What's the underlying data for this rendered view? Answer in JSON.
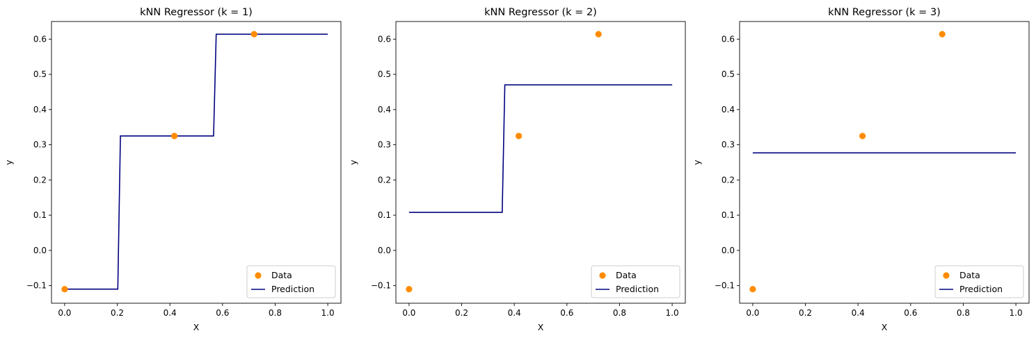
{
  "colors": {
    "data_points": "#ff8c00",
    "prediction_line": "#000080",
    "axes": "#000000",
    "legend_border": "#cccccc"
  },
  "chart_data": [
    {
      "type": "line",
      "title": "kNN Regressor (k = 1)",
      "xlabel": "X",
      "ylabel": "y",
      "xlim": [
        -0.05,
        1.05
      ],
      "ylim": [
        -0.15,
        0.65
      ],
      "xticks": [
        0.0,
        0.2,
        0.4,
        0.6,
        0.8,
        1.0
      ],
      "xtick_labels": [
        "0.0",
        "0.2",
        "0.4",
        "0.6",
        "0.8",
        "1.0"
      ],
      "yticks": [
        -0.1,
        0.0,
        0.1,
        0.2,
        0.3,
        0.4,
        0.5,
        0.6
      ],
      "ytick_labels": [
        "−0.1",
        "0.0",
        "0.1",
        "0.2",
        "0.3",
        "0.4",
        "0.5",
        "0.6"
      ],
      "grid": false,
      "legend": {
        "position": "lower-right",
        "entries": [
          "Data",
          "Prediction"
        ]
      },
      "series": [
        {
          "name": "Data",
          "kind": "scatter",
          "color": "#ff8c00",
          "points": [
            [
              0.0,
              -0.11
            ],
            [
              0.417,
              0.325
            ],
            [
              0.72,
              0.614
            ]
          ]
        },
        {
          "name": "Prediction",
          "kind": "line",
          "color": "#000080",
          "points": [
            [
              0.0,
              -0.11
            ],
            [
              0.202,
              -0.11
            ],
            [
              0.212,
              0.325
            ],
            [
              0.566,
              0.325
            ],
            [
              0.576,
              0.614
            ],
            [
              1.0,
              0.614
            ]
          ]
        }
      ]
    },
    {
      "type": "line",
      "title": "kNN Regressor (k = 2)",
      "xlabel": "X",
      "ylabel": "y",
      "xlim": [
        -0.05,
        1.05
      ],
      "ylim": [
        -0.15,
        0.65
      ],
      "xticks": [
        0.0,
        0.2,
        0.4,
        0.6,
        0.8,
        1.0
      ],
      "xtick_labels": [
        "0.0",
        "0.2",
        "0.4",
        "0.6",
        "0.8",
        "1.0"
      ],
      "yticks": [
        -0.1,
        0.0,
        0.1,
        0.2,
        0.3,
        0.4,
        0.5,
        0.6
      ],
      "ytick_labels": [
        "−0.1",
        "0.0",
        "0.1",
        "0.2",
        "0.3",
        "0.4",
        "0.5",
        "0.6"
      ],
      "grid": false,
      "legend": {
        "position": "lower-right",
        "entries": [
          "Data",
          "Prediction"
        ]
      },
      "series": [
        {
          "name": "Data",
          "kind": "scatter",
          "color": "#ff8c00",
          "points": [
            [
              0.0,
              -0.11
            ],
            [
              0.417,
              0.325
            ],
            [
              0.72,
              0.614
            ]
          ]
        },
        {
          "name": "Prediction",
          "kind": "line",
          "color": "#000080",
          "points": [
            [
              0.0,
              0.108
            ],
            [
              0.354,
              0.108
            ],
            [
              0.364,
              0.47
            ],
            [
              1.0,
              0.47
            ]
          ]
        }
      ]
    },
    {
      "type": "line",
      "title": "kNN Regressor (k = 3)",
      "xlabel": "X",
      "ylabel": "y",
      "xlim": [
        -0.05,
        1.05
      ],
      "ylim": [
        -0.15,
        0.65
      ],
      "xticks": [
        0.0,
        0.2,
        0.4,
        0.6,
        0.8,
        1.0
      ],
      "xtick_labels": [
        "0.0",
        "0.2",
        "0.4",
        "0.6",
        "0.8",
        "1.0"
      ],
      "yticks": [
        -0.1,
        0.0,
        0.1,
        0.2,
        0.3,
        0.4,
        0.5,
        0.6
      ],
      "ytick_labels": [
        "−0.1",
        "0.0",
        "0.1",
        "0.2",
        "0.3",
        "0.4",
        "0.5",
        "0.6"
      ],
      "grid": false,
      "legend": {
        "position": "lower-right",
        "entries": [
          "Data",
          "Prediction"
        ]
      },
      "series": [
        {
          "name": "Data",
          "kind": "scatter",
          "color": "#ff8c00",
          "points": [
            [
              0.0,
              -0.11
            ],
            [
              0.417,
              0.325
            ],
            [
              0.72,
              0.614
            ]
          ]
        },
        {
          "name": "Prediction",
          "kind": "line",
          "color": "#000080",
          "points": [
            [
              0.0,
              0.277
            ],
            [
              1.0,
              0.277
            ]
          ]
        }
      ]
    }
  ]
}
